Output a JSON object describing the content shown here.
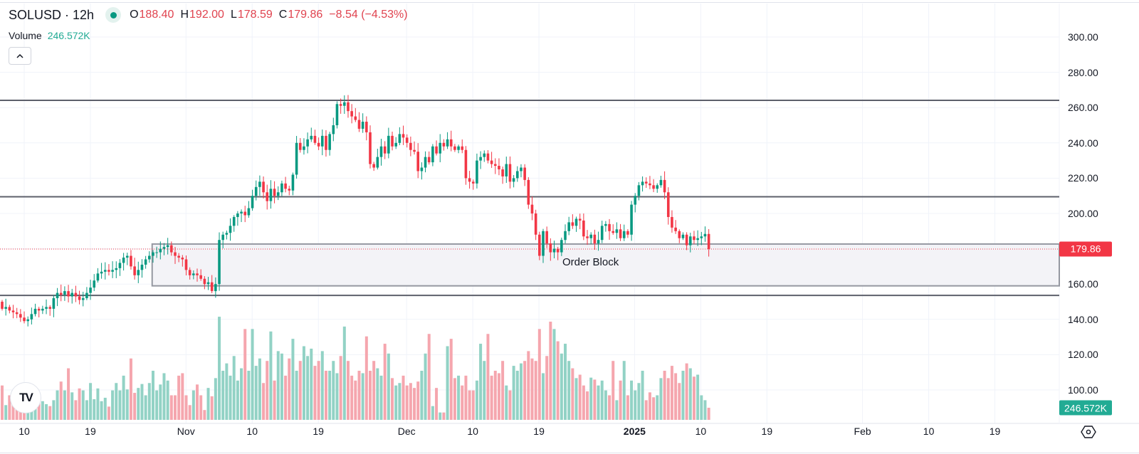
{
  "header": {
    "symbol": "SOLUSD · 12h",
    "o_label": "O",
    "o_value": "188.40",
    "h_label": "H",
    "h_value": "192.00",
    "l_label": "L",
    "l_value": "178.59",
    "c_label": "C",
    "c_value": "179.86",
    "change": "−8.54 (−4.53%)",
    "volume_label": "Volume",
    "volume_value": "246.572K",
    "collapse_icon": "chevron-up-icon"
  },
  "annotations": {
    "order_block_label": "Order Block"
  },
  "price_axis": {
    "ticks": [
      "300.00",
      "280.00",
      "260.00",
      "240.00",
      "220.00",
      "200.00",
      "160.00",
      "140.00",
      "120.00",
      "100.00"
    ],
    "last_price_label": "179.86",
    "last_volume_label": "246.572K"
  },
  "time_axis": {
    "ticks": [
      {
        "label": "10",
        "day": 0
      },
      {
        "label": "19",
        "day": 9
      },
      {
        "label": "Nov",
        "day": 22
      },
      {
        "label": "10",
        "day": 31
      },
      {
        "label": "19",
        "day": 40
      },
      {
        "label": "Dec",
        "day": 52
      },
      {
        "label": "10",
        "day": 61
      },
      {
        "label": "19",
        "day": 70
      },
      {
        "label": "2025",
        "day": 83,
        "bold": true
      },
      {
        "label": "10",
        "day": 92
      },
      {
        "label": "19",
        "day": 101
      },
      {
        "label": "Feb",
        "day": 114
      },
      {
        "label": "10",
        "day": 123
      },
      {
        "label": "19",
        "day": 132
      }
    ],
    "settings_icon": "gear-icon"
  },
  "logo": {
    "text": "TV"
  },
  "colors": {
    "up": "#089981",
    "down": "#f23645",
    "vol_up": "#92d2c5",
    "vol_down": "#f5a6ae",
    "level_line": "#5d606b",
    "order_block_border": "#9598a1",
    "order_block_fill": "#f3f3f7"
  },
  "chart_data": {
    "type": "candlestick",
    "title": "SOLUSD · 12h",
    "interval_hours": 12,
    "first_candle_day_offset": -3.3,
    "ylim": [
      88,
      310
    ],
    "yticks": [
      100,
      120,
      140,
      160,
      180,
      200,
      220,
      240,
      260,
      280,
      300
    ],
    "first_open": 150,
    "closes": [
      146,
      147,
      145,
      144,
      143,
      141,
      139,
      140,
      143,
      146,
      145,
      146,
      147,
      146,
      152,
      155,
      154,
      156,
      153,
      155,
      153,
      151,
      152,
      155,
      158,
      162,
      166,
      167,
      168,
      167,
      168,
      169,
      172,
      175,
      176,
      170,
      165,
      168,
      171,
      174,
      176,
      178,
      178,
      180,
      181,
      182,
      178,
      176,
      175,
      174,
      168,
      165,
      166,
      165,
      163,
      160,
      161,
      156,
      160,
      185,
      188,
      189,
      193,
      198,
      200,
      201,
      199,
      203,
      210,
      215,
      218,
      212,
      207,
      214,
      210,
      212,
      217,
      214,
      213,
      222,
      240,
      236,
      238,
      242,
      244,
      240,
      238,
      244,
      236,
      245,
      250,
      262,
      261,
      263,
      258,
      255,
      253,
      248,
      252,
      246,
      228,
      226,
      232,
      238,
      234,
      244,
      238,
      240,
      245,
      243,
      240,
      236,
      235,
      224,
      226,
      232,
      229,
      238,
      234,
      240,
      238,
      242,
      238,
      236,
      238,
      236,
      220,
      218,
      217,
      230,
      232,
      234,
      230,
      228,
      227,
      225,
      221,
      228,
      218,
      220,
      224,
      226,
      219,
      205,
      200,
      188,
      176,
      190,
      183,
      178,
      180,
      178,
      185,
      190,
      195,
      193,
      197,
      196,
      187,
      186,
      188,
      183,
      185,
      193,
      194,
      190,
      189,
      191,
      186,
      190,
      188,
      205,
      210,
      216,
      218,
      217,
      216,
      214,
      216,
      219,
      212,
      198,
      192,
      190,
      186,
      188,
      182,
      187,
      185,
      186,
      187,
      188.4,
      179.86
    ],
    "volumes_k": [
      700,
      300,
      500,
      420,
      380,
      350,
      300,
      400,
      350,
      300,
      350,
      380,
      320,
      280,
      400,
      600,
      780,
      600,
      1050,
      560,
      400,
      640,
      600,
      400,
      750,
      420,
      640,
      380,
      450,
      270,
      600,
      750,
      600,
      900,
      620,
      1250,
      550,
      650,
      730,
      500,
      750,
      1000,
      600,
      720,
      950,
      800,
      500,
      500,
      900,
      950,
      500,
      300,
      600,
      720,
      500,
      200,
      650,
      480,
      850,
      2100,
      1000,
      1150,
      900,
      1300,
      800,
      1050,
      1850,
      1000,
      1850,
      1100,
      1250,
      750,
      1200,
      1800,
      800,
      1400,
      1350,
      900,
      1250,
      1650,
      1000,
      1200,
      1500,
      1300,
      1450,
      1100,
      1200,
      1400,
      1000,
      1000,
      1200,
      950,
      1300,
      1900,
      1200,
      900,
      800,
      1000,
      950,
      1700,
      1000,
      1200,
      1050,
      900,
      1550,
      1350,
      850,
      700,
      750,
      900,
      700,
      750,
      650,
      780,
      1000,
      1350,
      1750,
      280,
      650,
      150,
      150,
      1500,
      1650,
      850,
      900,
      700,
      900,
      600,
      600,
      800,
      1550,
      1200,
      1750,
      900,
      1000,
      950,
      1200,
      700,
      600,
      1100,
      1000,
      1150,
      1200,
      1400,
      1250,
      1200,
      1850,
      950,
      1300,
      2000,
      1850,
      1600,
      1350,
      1550,
      1200,
      1050,
      850,
      920,
      700,
      580,
      860,
      820,
      700,
      800,
      600,
      500,
      1200,
      400,
      800,
      1200,
      500,
      800,
      600,
      750,
      1000,
      400,
      560,
      460,
      500,
      850,
      1000,
      850,
      1100,
      950,
      750,
      1000,
      1150,
      1050,
      880,
      920,
      500,
      400,
      246.572
    ],
    "horizontal_levels": [
      264.1,
      209.5,
      153.6
    ],
    "order_block": {
      "top": 182.7,
      "bottom": 159.0,
      "start_day": 17.4
    },
    "last_price": 179.86
  }
}
